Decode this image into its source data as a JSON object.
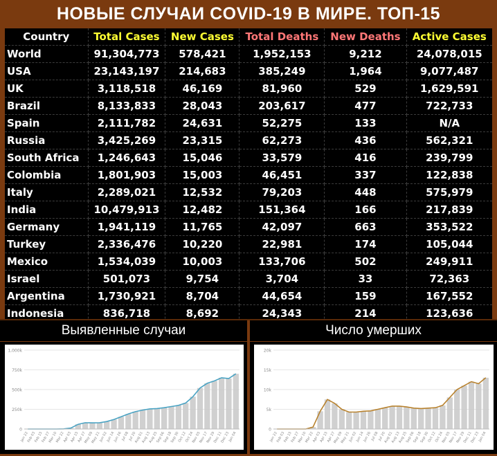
{
  "title": "НОВЫЕ СЛУЧАИ COVID-19 В МИРЕ. ТОП-15",
  "colors": {
    "background": "#7a3a0f",
    "header_country": "#ffffff",
    "header_total_cases": "#ffff33",
    "header_new_cases": "#ffff33",
    "header_total_deaths": "#ff7777",
    "header_new_deaths": "#ff7777",
    "header_active_cases": "#ffff33",
    "cases_line": "#4aa3c3",
    "deaths_line": "#b8822e",
    "bars": "#c8c8c8"
  },
  "table": {
    "headers": [
      "Country",
      "Total Cases",
      "New Cases",
      "Total Deaths",
      "New Deaths",
      "Active Cases"
    ],
    "rows": [
      [
        "World",
        "91,304,773",
        "578,421",
        "1,952,153",
        "9,212",
        "24,078,015"
      ],
      [
        "USA",
        "23,143,197",
        "214,683",
        "385,249",
        "1,964",
        "9,077,487"
      ],
      [
        "UK",
        "3,118,518",
        "46,169",
        "81,960",
        "529",
        "1,629,591"
      ],
      [
        "Brazil",
        "8,133,833",
        "28,043",
        "203,617",
        "477",
        "722,733"
      ],
      [
        "Spain",
        "2,111,782",
        "24,631",
        "52,275",
        "133",
        "N/A"
      ],
      [
        "Russia",
        "3,425,269",
        "23,315",
        "62,273",
        "436",
        "562,321"
      ],
      [
        "South Africa",
        "1,246,643",
        "15,046",
        "33,579",
        "416",
        "239,799"
      ],
      [
        "Colombia",
        "1,801,903",
        "15,003",
        "46,451",
        "337",
        "122,838"
      ],
      [
        "Italy",
        "2,289,021",
        "12,532",
        "79,203",
        "448",
        "575,979"
      ],
      [
        "India",
        "10,479,913",
        "12,482",
        "151,364",
        "166",
        "217,839"
      ],
      [
        "Germany",
        "1,941,119",
        "11,765",
        "42,097",
        "663",
        "353,522"
      ],
      [
        "Turkey",
        "2,336,476",
        "10,220",
        "22,981",
        "174",
        "105,044"
      ],
      [
        "Mexico",
        "1,534,039",
        "10,003",
        "133,706",
        "502",
        "249,911"
      ],
      [
        "Israel",
        "501,073",
        "9,754",
        "3,704",
        "33",
        "72,363"
      ],
      [
        "Argentina",
        "1,730,921",
        "8,704",
        "44,654",
        "159",
        "167,552"
      ],
      [
        "Indonesia",
        "836,718",
        "8,692",
        "24,343",
        "214",
        "123,636"
      ]
    ]
  },
  "panels": {
    "left_title": "Выявленные случаи",
    "right_title": "Число умерших"
  },
  "chart_data": [
    {
      "type": "bar",
      "title": "Выявленные случаи",
      "ylim": [
        0,
        1000000
      ],
      "yticks": [
        "0",
        "250k",
        "500k",
        "750k",
        "1,000k"
      ],
      "yticks_values": [
        0,
        250000,
        500000,
        750000,
        1000000
      ],
      "xticks": [
        "Jan 22",
        "Feb 03",
        "Feb 15",
        "Feb 27",
        "Mar 10",
        "Mar 22",
        "Apr 03",
        "Apr 15",
        "Apr 27",
        "May 09",
        "May 21",
        "Jun 02",
        "Jun 14",
        "Jun 26",
        "Jul 08",
        "Jul 20",
        "Aug 01",
        "Aug 13",
        "Aug 25",
        "Sep 06",
        "Sep 18",
        "Sep 30",
        "Oct 12",
        "Oct 24",
        "Nov 05",
        "Nov 17",
        "Nov 29",
        "Dec 11",
        "Dec 23",
        "Jan 04"
      ],
      "series": [
        {
          "kind": "bar",
          "values": [
            0,
            0,
            0,
            0,
            0,
            2000,
            12000,
            60000,
            80000,
            78000,
            80000,
            95000,
            120000,
            155000,
            190000,
            220000,
            240000,
            255000,
            260000,
            270000,
            285000,
            300000,
            330000,
            410000,
            520000,
            580000,
            610000,
            650000,
            640000,
            700000
          ]
        },
        {
          "kind": "line",
          "values": [
            0,
            0,
            0,
            0,
            0,
            2000,
            12000,
            60000,
            80000,
            78000,
            80000,
            95000,
            120000,
            155000,
            190000,
            220000,
            240000,
            255000,
            260000,
            270000,
            285000,
            300000,
            330000,
            410000,
            520000,
            580000,
            610000,
            650000,
            640000,
            700000
          ]
        }
      ],
      "grid": true
    },
    {
      "type": "bar",
      "title": "Число умерших",
      "ylim": [
        0,
        20000
      ],
      "yticks": [
        "0",
        "5k",
        "10k",
        "15k",
        "20k"
      ],
      "yticks_values": [
        0,
        5000,
        10000,
        15000,
        20000
      ],
      "xticks": [
        "Jan 22",
        "Feb 03",
        "Feb 15",
        "Feb 27",
        "Mar 10",
        "Mar 22",
        "Apr 03",
        "Apr 15",
        "Apr 27",
        "May 09",
        "May 21",
        "Jun 02",
        "Jun 14",
        "Jun 26",
        "Jul 08",
        "Jul 20",
        "Aug 01",
        "Aug 13",
        "Aug 25",
        "Sep 06",
        "Sep 18",
        "Sep 30",
        "Oct 12",
        "Oct 24",
        "Nov 05",
        "Nov 17",
        "Nov 29",
        "Dec 11",
        "Dec 23",
        "Jan 04"
      ],
      "series": [
        {
          "kind": "bar",
          "values": [
            0,
            0,
            0,
            0,
            0,
            500,
            4500,
            7500,
            6500,
            5000,
            4300,
            4300,
            4500,
            4600,
            5000,
            5400,
            5800,
            5800,
            5600,
            5300,
            5200,
            5300,
            5400,
            6000,
            8000,
            10000,
            11000,
            12000,
            11500,
            13000
          ]
        },
        {
          "kind": "line",
          "values": [
            0,
            0,
            0,
            0,
            0,
            500,
            4500,
            7500,
            6500,
            5000,
            4300,
            4300,
            4500,
            4600,
            5000,
            5400,
            5800,
            5800,
            5600,
            5300,
            5200,
            5300,
            5400,
            6000,
            8000,
            10000,
            11000,
            12000,
            11500,
            13000
          ]
        }
      ],
      "grid": true
    }
  ]
}
